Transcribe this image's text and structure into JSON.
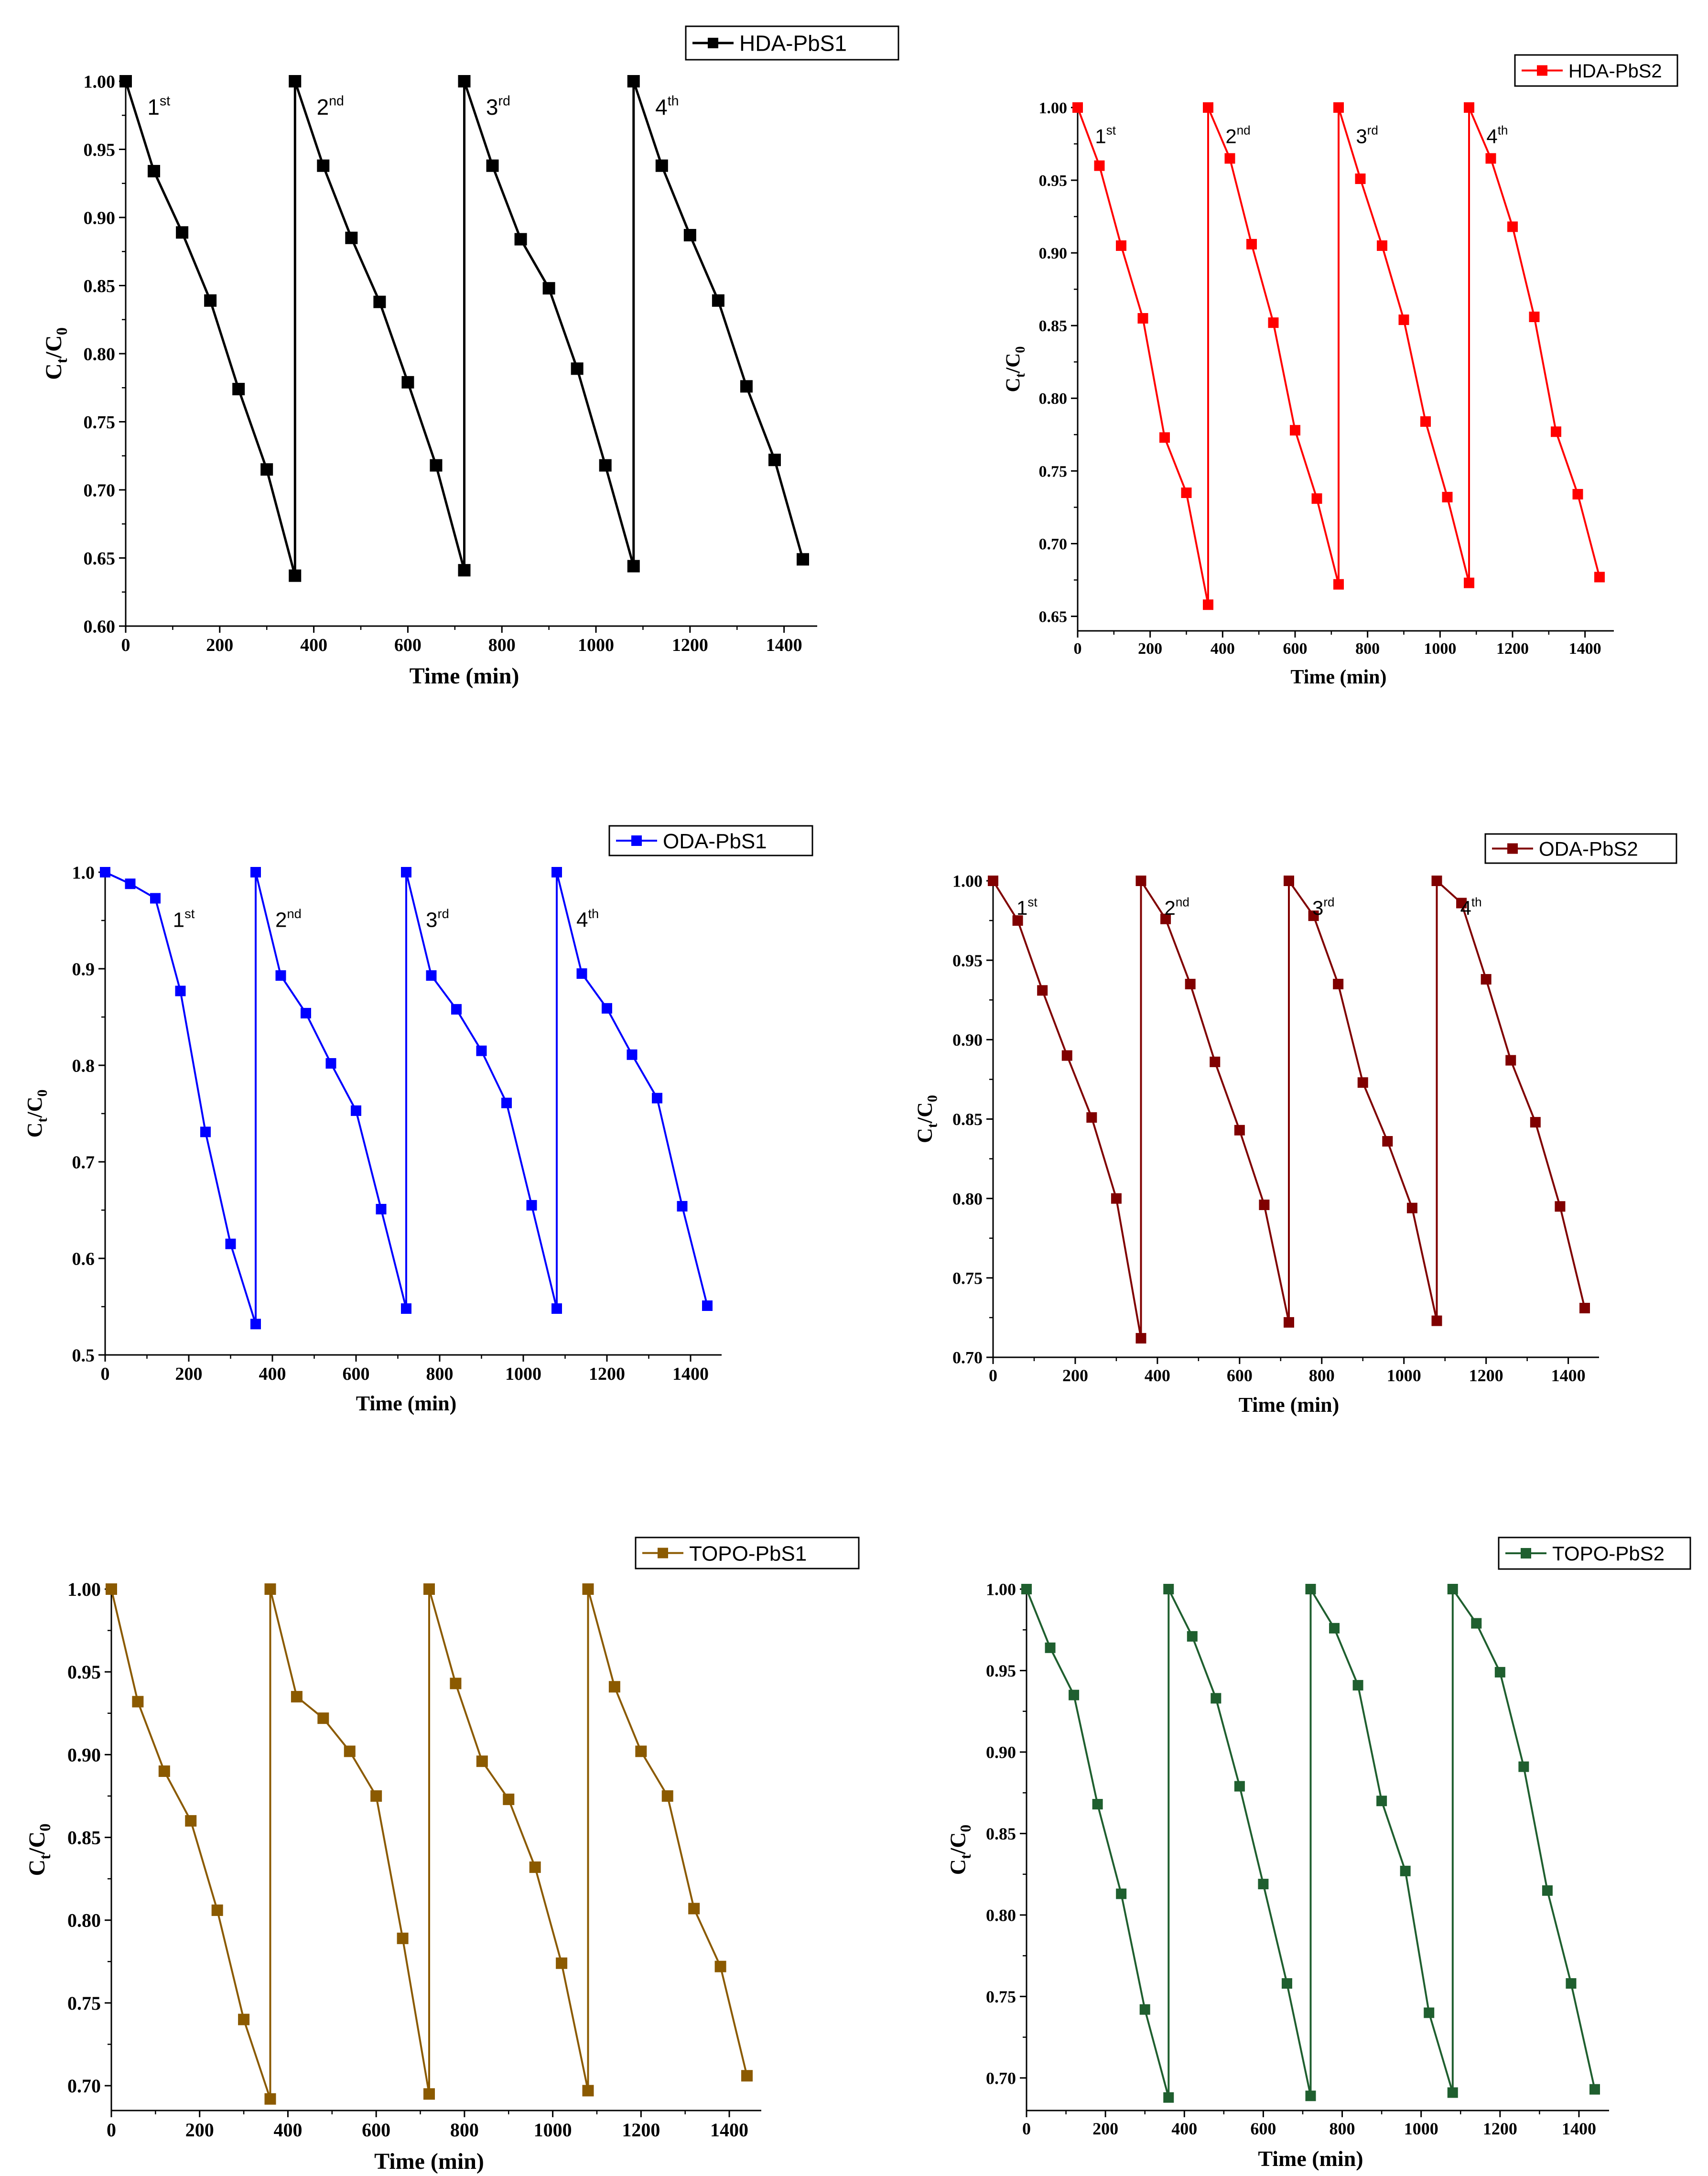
{
  "chart_data": [
    {
      "type": "line",
      "title": "HDA-PbS1",
      "legend": "HDA-PbS1",
      "legend_position": "top-right",
      "color": "#000000",
      "xlabel": "Time (min)",
      "ylabel_main": "C",
      "ylabel_sub1": "t",
      "ylabel_mid": "/C",
      "ylabel_sub2": "0",
      "xlim": [
        0,
        1440
      ],
      "ylim": [
        0.6,
        1.0
      ],
      "xticks": [
        0,
        200,
        400,
        600,
        800,
        1000,
        1200,
        1400
      ],
      "yticks": [
        "0.60",
        "0.65",
        "0.70",
        "0.75",
        "0.80",
        "0.85",
        "0.90",
        "0.95",
        "1.00"
      ],
      "x": [
        0,
        60,
        120,
        180,
        240,
        300,
        360,
        360,
        420,
        480,
        540,
        600,
        660,
        720,
        720,
        780,
        840,
        900,
        960,
        1020,
        1080,
        1080,
        1140,
        1200,
        1260,
        1320,
        1380,
        1440
      ],
      "values": [
        1.0,
        0.934,
        0.889,
        0.839,
        0.774,
        0.715,
        0.637,
        1.0,
        0.938,
        0.885,
        0.838,
        0.779,
        0.718,
        0.641,
        1.0,
        0.938,
        0.884,
        0.848,
        0.789,
        0.718,
        0.644,
        1.0,
        0.938,
        0.887,
        0.839,
        0.776,
        0.722,
        0.649
      ],
      "cycles": [
        {
          "num": "1",
          "sup": "st",
          "x": 40,
          "y": 0.99
        },
        {
          "num": "2",
          "sup": "nd",
          "x": 400,
          "y": 0.99
        },
        {
          "num": "3",
          "sup": "rd",
          "x": 760,
          "y": 0.99
        },
        {
          "num": "4",
          "sup": "th",
          "x": 1120,
          "y": 0.99
        }
      ]
    },
    {
      "type": "line",
      "title": "HDA-PbS2",
      "legend": "HDA-PbS2",
      "legend_position": "top-right",
      "color": "#ff0000",
      "xlabel": "Time (min)",
      "ylabel_main": "C",
      "ylabel_sub1": "t",
      "ylabel_mid": "/C",
      "ylabel_sub2": "0",
      "xlim": [
        0,
        1440
      ],
      "ylim": [
        0.64,
        1.0
      ],
      "xticks": [
        0,
        200,
        400,
        600,
        800,
        1000,
        1200,
        1400
      ],
      "yticks": [
        "0.65",
        "0.70",
        "0.75",
        "0.80",
        "0.85",
        "0.90",
        "0.95",
        "1.00"
      ],
      "x": [
        0,
        60,
        120,
        180,
        240,
        300,
        360,
        360,
        420,
        480,
        540,
        600,
        660,
        720,
        720,
        780,
        840,
        900,
        960,
        1020,
        1080,
        1080,
        1140,
        1200,
        1260,
        1320,
        1380,
        1440
      ],
      "values": [
        1.0,
        0.96,
        0.905,
        0.855,
        0.773,
        0.735,
        0.658,
        1.0,
        0.965,
        0.906,
        0.852,
        0.778,
        0.731,
        0.672,
        1.0,
        0.951,
        0.905,
        0.854,
        0.784,
        0.732,
        0.673,
        1.0,
        0.965,
        0.918,
        0.856,
        0.777,
        0.734,
        0.677
      ],
      "cycles": [
        {
          "num": "1",
          "sup": "st",
          "x": 40,
          "y": 0.988
        },
        {
          "num": "2",
          "sup": "nd",
          "x": 400,
          "y": 0.988
        },
        {
          "num": "3",
          "sup": "rd",
          "x": 760,
          "y": 0.988
        },
        {
          "num": "4",
          "sup": "th",
          "x": 1120,
          "y": 0.988
        }
      ]
    },
    {
      "type": "line",
      "title": "ODA-PbS1",
      "legend": "ODA-PbS1",
      "legend_position": "top-right",
      "color": "#0000ff",
      "xlabel": "Time (min)",
      "ylabel_main": "C",
      "ylabel_sub1": "t",
      "ylabel_mid": "/C",
      "ylabel_sub2": "0",
      "xlim": [
        0,
        1440
      ],
      "ylim": [
        0.5,
        1.0
      ],
      "xticks": [
        0,
        200,
        400,
        600,
        800,
        1000,
        1200,
        1400
      ],
      "yticks": [
        "0.5",
        "0.6",
        "0.7",
        "0.8",
        "0.9",
        "1.0"
      ],
      "x": [
        0,
        60,
        120,
        180,
        240,
        300,
        360,
        360,
        420,
        480,
        540,
        600,
        660,
        720,
        720,
        780,
        840,
        900,
        960,
        1020,
        1080,
        1080,
        1140,
        1200,
        1260,
        1320,
        1380,
        1440
      ],
      "values": [
        1.0,
        0.988,
        0.973,
        0.877,
        0.731,
        0.615,
        0.532,
        1.0,
        0.893,
        0.854,
        0.802,
        0.753,
        0.651,
        0.548,
        1.0,
        0.893,
        0.858,
        0.815,
        0.761,
        0.655,
        0.548,
        1.0,
        0.895,
        0.859,
        0.811,
        0.766,
        0.654,
        0.551
      ],
      "cycles": [
        {
          "num": "1",
          "sup": "st",
          "x": 155,
          "y": 0.963
        },
        {
          "num": "2",
          "sup": "nd",
          "x": 400,
          "y": 0.963
        },
        {
          "num": "3",
          "sup": "rd",
          "x": 760,
          "y": 0.963
        },
        {
          "num": "4",
          "sup": "th",
          "x": 1120,
          "y": 0.963
        }
      ]
    },
    {
      "type": "line",
      "title": "ODA-PbS2",
      "legend": "ODA-PbS2",
      "legend_position": "top-right",
      "color": "#800000",
      "xlabel": "Time (min)",
      "ylabel_main": "C",
      "ylabel_sub1": "t",
      "ylabel_mid": "/C",
      "ylabel_sub2": "0",
      "xlim": [
        0,
        1440
      ],
      "ylim": [
        0.7,
        1.0
      ],
      "xticks": [
        0,
        200,
        400,
        600,
        800,
        1000,
        1200,
        1400
      ],
      "yticks": [
        "0.70",
        "0.75",
        "0.80",
        "0.85",
        "0.90",
        "0.95",
        "1.00"
      ],
      "x": [
        0,
        60,
        120,
        180,
        240,
        300,
        360,
        360,
        420,
        480,
        540,
        600,
        660,
        720,
        720,
        780,
        840,
        900,
        960,
        1020,
        1080,
        1080,
        1140,
        1200,
        1260,
        1320,
        1380,
        1440
      ],
      "values": [
        1.0,
        0.975,
        0.931,
        0.89,
        0.851,
        0.8,
        0.712,
        1.0,
        0.976,
        0.935,
        0.886,
        0.843,
        0.796,
        0.722,
        1.0,
        0.978,
        0.935,
        0.873,
        0.836,
        0.794,
        0.723,
        1.0,
        0.986,
        0.938,
        0.887,
        0.848,
        0.795,
        0.731
      ],
      "cycles": [
        {
          "num": "1",
          "sup": "st",
          "x": 50,
          "y": 0.99
        },
        {
          "num": "2",
          "sup": "nd",
          "x": 410,
          "y": 0.99
        },
        {
          "num": "3",
          "sup": "rd",
          "x": 770,
          "y": 0.99
        },
        {
          "num": "4",
          "sup": "th",
          "x": 1130,
          "y": 0.99
        }
      ]
    },
    {
      "type": "line",
      "title": "TOPO-PbS1",
      "legend": "TOPO-PbS1",
      "legend_position": "top-right",
      "color": "#8b5a00",
      "xlabel": "Time (min)",
      "ylabel_main": "C",
      "ylabel_sub1": "t",
      "ylabel_mid": "/C",
      "ylabel_sub2": "0",
      "xlim": [
        0,
        1440
      ],
      "ylim": [
        0.685,
        1.0
      ],
      "xticks": [
        0,
        200,
        400,
        600,
        800,
        1000,
        1200,
        1400
      ],
      "yticks": [
        "0.70",
        "0.75",
        "0.80",
        "0.85",
        "0.90",
        "0.95",
        "1.00"
      ],
      "x": [
        0,
        60,
        120,
        180,
        240,
        300,
        360,
        360,
        420,
        480,
        540,
        600,
        660,
        720,
        720,
        780,
        840,
        900,
        960,
        1020,
        1080,
        1080,
        1140,
        1200,
        1260,
        1320,
        1380,
        1440
      ],
      "values": [
        1.0,
        0.932,
        0.89,
        0.86,
        0.806,
        0.74,
        0.692,
        1.0,
        0.935,
        0.922,
        0.902,
        0.875,
        0.789,
        0.695,
        1.0,
        0.943,
        0.896,
        0.873,
        0.832,
        0.774,
        0.697,
        1.0,
        0.941,
        0.902,
        0.875,
        0.807,
        0.772,
        0.706
      ],
      "cycles": []
    },
    {
      "type": "line",
      "title": "TOPO-PbS2",
      "legend": "TOPO-PbS2",
      "legend_position": "top-right",
      "color": "#1f5f2f",
      "xlabel": "Time (min)",
      "ylabel_main": "C",
      "ylabel_sub1": "t",
      "ylabel_mid": "/C",
      "ylabel_sub2": "0",
      "xlim": [
        0,
        1440
      ],
      "ylim": [
        0.68,
        1.0
      ],
      "xticks": [
        0,
        200,
        400,
        600,
        800,
        1000,
        1200,
        1400
      ],
      "yticks": [
        "0.70",
        "0.75",
        "0.80",
        "0.85",
        "0.90",
        "0.95",
        "1.00"
      ],
      "x": [
        0,
        60,
        120,
        180,
        240,
        300,
        360,
        360,
        420,
        480,
        540,
        600,
        660,
        720,
        720,
        780,
        840,
        900,
        960,
        1020,
        1080,
        1080,
        1140,
        1200,
        1260,
        1320,
        1380,
        1440
      ],
      "values": [
        1.0,
        0.964,
        0.935,
        0.868,
        0.813,
        0.742,
        0.688,
        1.0,
        0.971,
        0.933,
        0.879,
        0.819,
        0.758,
        0.689,
        1.0,
        0.976,
        0.941,
        0.87,
        0.827,
        0.74,
        0.691,
        1.0,
        0.979,
        0.949,
        0.891,
        0.815,
        0.758,
        0.693
      ],
      "cycles": []
    }
  ]
}
